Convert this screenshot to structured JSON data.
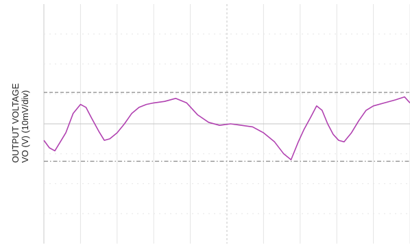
{
  "chart_data": {
    "type": "line",
    "title": "",
    "xlabel": "",
    "ylabel_lines": [
      "OUTPUT VOLTAGE",
      "VO (V) (10mV/div)"
    ],
    "divisions": {
      "x": 10,
      "y": 8
    },
    "grid": true,
    "xlim": [
      0,
      10
    ],
    "ylim": [
      -4,
      4
    ],
    "reference_lines": [
      {
        "style": "dashed",
        "y": 1.05
      },
      {
        "style": "dash-dot",
        "y": -1.25
      }
    ],
    "series": [
      {
        "color": "#b040b0",
        "x": [
          0,
          0.15,
          0.3,
          0.45,
          0.6,
          0.8,
          1.0,
          1.15,
          1.3,
          1.5,
          1.65,
          1.8,
          2.0,
          2.2,
          2.4,
          2.6,
          2.8,
          3.0,
          3.3,
          3.6,
          3.9,
          4.2,
          4.5,
          4.8,
          5.1,
          5.4,
          5.7,
          6.0,
          6.3,
          6.55,
          6.75,
          6.95,
          7.1,
          7.3,
          7.45,
          7.6,
          7.75,
          7.9,
          8.05,
          8.2,
          8.4,
          8.6,
          8.8,
          9.0,
          9.3,
          9.6,
          9.85,
          10.0
        ],
        "y": [
          -0.55,
          -0.8,
          -0.9,
          -0.6,
          -0.3,
          0.35,
          0.65,
          0.55,
          0.2,
          -0.25,
          -0.55,
          -0.5,
          -0.3,
          0.0,
          0.35,
          0.55,
          0.65,
          0.7,
          0.75,
          0.85,
          0.7,
          0.3,
          0.05,
          -0.05,
          0.0,
          -0.05,
          -0.1,
          -0.3,
          -0.6,
          -1.0,
          -1.2,
          -0.6,
          -0.2,
          0.25,
          0.6,
          0.45,
          0.0,
          -0.35,
          -0.55,
          -0.6,
          -0.3,
          0.1,
          0.45,
          0.6,
          0.7,
          0.8,
          0.9,
          0.7
        ]
      }
    ]
  }
}
